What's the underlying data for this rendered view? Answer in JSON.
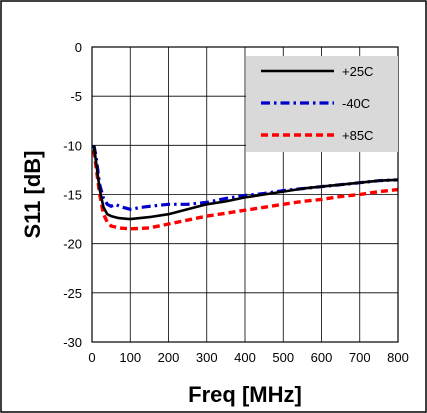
{
  "chart_data": {
    "type": "line",
    "title": "",
    "xlabel": "Freq [MHz]",
    "ylabel": "S11 [dB]",
    "xlim": [
      0,
      800
    ],
    "ylim": [
      -30,
      0
    ],
    "x_ticks": [
      0,
      100,
      200,
      300,
      400,
      500,
      600,
      700,
      800
    ],
    "y_ticks": [
      0,
      -5,
      -10,
      -15,
      -20,
      -25,
      -30
    ],
    "x_tick_labels": [
      "0",
      "100",
      "200",
      "300",
      "400",
      "500",
      "600",
      "700",
      "800"
    ],
    "y_tick_labels": [
      "0",
      "-5",
      "-10",
      "-15",
      "-20",
      "-25",
      "-30"
    ],
    "grid": true,
    "legend_position": "top-right",
    "series": [
      {
        "name": "+25C",
        "color": "#000000",
        "style": "solid",
        "x": [
          5,
          10,
          20,
          30,
          40,
          50,
          70,
          100,
          150,
          200,
          250,
          300,
          350,
          400,
          450,
          500,
          550,
          600,
          650,
          700,
          750,
          800
        ],
        "y": [
          -10.0,
          -11.5,
          -14.5,
          -16.3,
          -17.0,
          -17.2,
          -17.4,
          -17.5,
          -17.3,
          -17.0,
          -16.5,
          -16.0,
          -15.7,
          -15.3,
          -15.0,
          -14.7,
          -14.4,
          -14.2,
          -14.0,
          -13.8,
          -13.6,
          -13.5
        ]
      },
      {
        "name": "-40C",
        "color": "#0000cc",
        "style": "dashdot",
        "x": [
          5,
          10,
          20,
          30,
          40,
          50,
          60,
          80,
          100,
          130,
          150,
          200,
          250,
          300,
          350,
          400,
          450,
          500,
          550,
          600,
          650,
          700,
          750,
          800
        ],
        "y": [
          -10.0,
          -11.0,
          -14.0,
          -15.4,
          -16.0,
          -16.2,
          -16.0,
          -16.3,
          -16.5,
          -16.3,
          -16.2,
          -16.0,
          -16.0,
          -15.8,
          -15.4,
          -15.1,
          -14.9,
          -14.6,
          -14.4,
          -14.2,
          -14.0,
          -13.8,
          -13.6,
          -13.5
        ]
      },
      {
        "name": "+85C",
        "color": "#ff0000",
        "style": "dashed",
        "x": [
          5,
          10,
          20,
          30,
          40,
          50,
          70,
          100,
          150,
          200,
          250,
          300,
          350,
          400,
          450,
          500,
          550,
          600,
          650,
          700,
          750,
          800
        ],
        "y": [
          -10.5,
          -12.0,
          -15.0,
          -17.0,
          -17.8,
          -18.2,
          -18.4,
          -18.5,
          -18.4,
          -18.0,
          -17.6,
          -17.2,
          -16.9,
          -16.6,
          -16.3,
          -16.0,
          -15.7,
          -15.5,
          -15.2,
          -15.0,
          -14.7,
          -14.5
        ]
      }
    ]
  }
}
